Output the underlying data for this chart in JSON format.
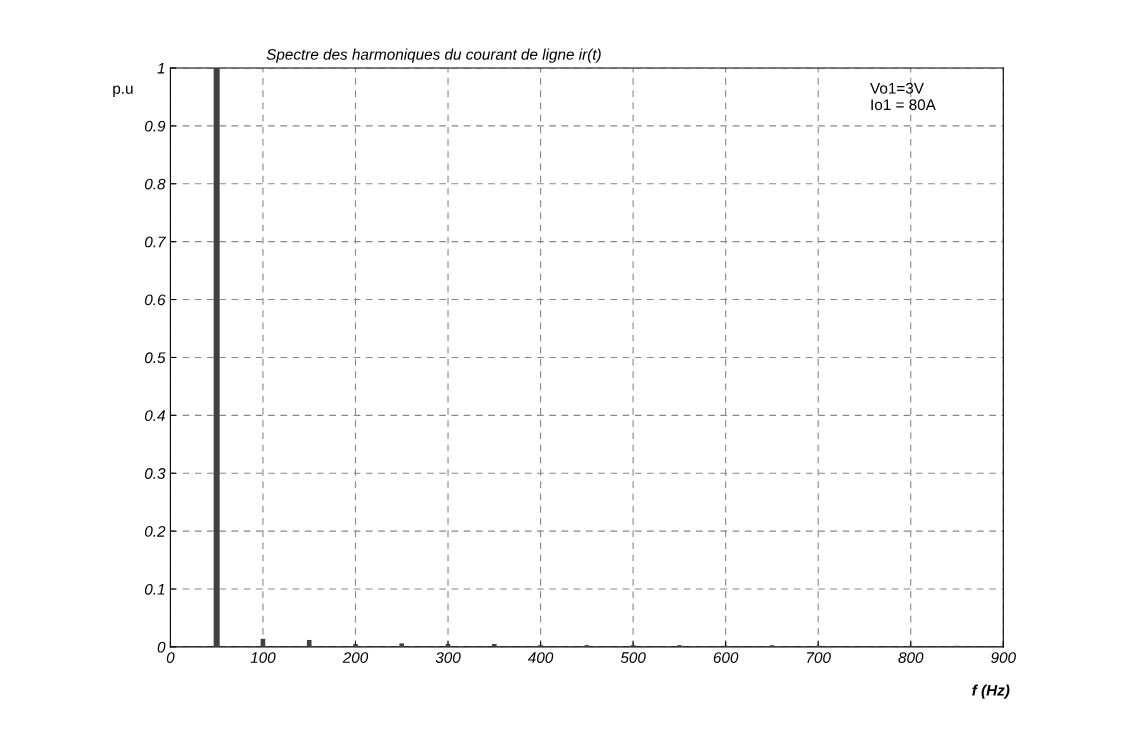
{
  "chart_data": {
    "type": "bar",
    "title": "Spectre des harmoniques du courant de ligne ir(t)",
    "xlabel": "f (Hz)",
    "ylabel": "p.u",
    "x": [
      50,
      100,
      150,
      200,
      250,
      300,
      350,
      400,
      450,
      500,
      550,
      600,
      650,
      700,
      750,
      800,
      850
    ],
    "values": [
      1,
      0.014,
      0.012,
      0.005,
      0.006,
      0.005,
      0.005,
      0.003,
      0.003,
      0.003,
      0.003,
      0.002,
      0.003,
      0.002,
      0.001,
      0.002,
      0.002
    ],
    "color": "#404040",
    "xlim": [
      0,
      900
    ],
    "xticks": [
      0,
      100,
      200,
      300,
      400,
      500,
      600,
      700,
      800,
      900
    ],
    "ylim": [
      0,
      1
    ],
    "yticks": [
      0,
      0.1,
      0.2,
      0.3,
      0.4,
      0.5,
      0.6,
      0.7,
      0.8,
      0.9,
      1
    ],
    "grid": true,
    "annotations": [
      "Vo1=3V\nIo1 = 80A"
    ]
  }
}
